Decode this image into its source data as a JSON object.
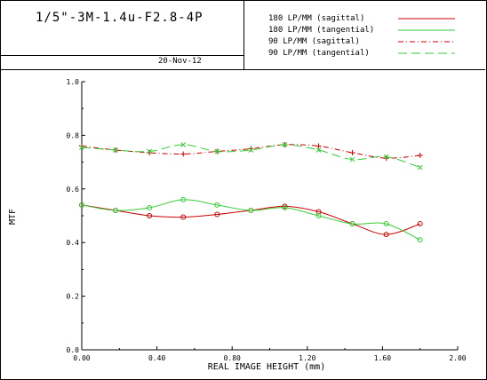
{
  "header": {
    "lens_name": "1/5\"-3M-1.4u-F2.8-4P",
    "date": "20-Nov-12"
  },
  "colors": {
    "sagittal": "#cc0000",
    "tangential": "#33cc33",
    "axis": "#000000"
  },
  "chart_data": {
    "type": "line",
    "title": "",
    "xlabel": "REAL IMAGE HEIGHT (mm)",
    "ylabel": "MTF",
    "xlim": [
      0.0,
      2.0
    ],
    "ylim": [
      0.0,
      1.0
    ],
    "x_ticks": [
      "0.00",
      "0.40",
      "0.80",
      "1.20",
      "1.60",
      "2.00"
    ],
    "y_ticks": [
      "0.0",
      "0.2",
      "0.4",
      "0.6",
      "0.8",
      "1.0"
    ],
    "grid": false,
    "legend_position": "top-right",
    "series": [
      {
        "name": "180 LP/MM (sagittal)",
        "color": "#cc0000",
        "dash": "solid",
        "marker": "circle",
        "x": [
          0.0,
          0.18,
          0.36,
          0.54,
          0.72,
          0.9,
          1.08,
          1.26,
          1.44,
          1.62,
          1.8
        ],
        "y": [
          0.54,
          0.52,
          0.5,
          0.495,
          0.505,
          0.52,
          0.535,
          0.515,
          0.47,
          0.43,
          0.47
        ]
      },
      {
        "name": "180 LP/MM (tangential)",
        "color": "#33cc33",
        "dash": "solid",
        "marker": "circle",
        "x": [
          0.0,
          0.18,
          0.36,
          0.54,
          0.72,
          0.9,
          1.08,
          1.26,
          1.44,
          1.62,
          1.8
        ],
        "y": [
          0.54,
          0.52,
          0.53,
          0.56,
          0.54,
          0.52,
          0.53,
          0.5,
          0.47,
          0.47,
          0.41
        ]
      },
      {
        "name": "90 LP/MM (sagittal)",
        "color": "#cc0000",
        "dash": "dashdot",
        "marker": "plus",
        "x": [
          0.0,
          0.18,
          0.36,
          0.54,
          0.72,
          0.9,
          1.08,
          1.26,
          1.44,
          1.62,
          1.8
        ],
        "y": [
          0.76,
          0.745,
          0.735,
          0.73,
          0.74,
          0.75,
          0.765,
          0.76,
          0.735,
          0.715,
          0.725
        ]
      },
      {
        "name": "90 LP/MM (tangential)",
        "color": "#33cc33",
        "dash": "longdash",
        "marker": "cross",
        "x": [
          0.0,
          0.18,
          0.36,
          0.54,
          0.72,
          0.9,
          1.08,
          1.26,
          1.44,
          1.62,
          1.8
        ],
        "y": [
          0.755,
          0.745,
          0.74,
          0.765,
          0.74,
          0.745,
          0.765,
          0.745,
          0.71,
          0.72,
          0.68
        ]
      }
    ]
  }
}
